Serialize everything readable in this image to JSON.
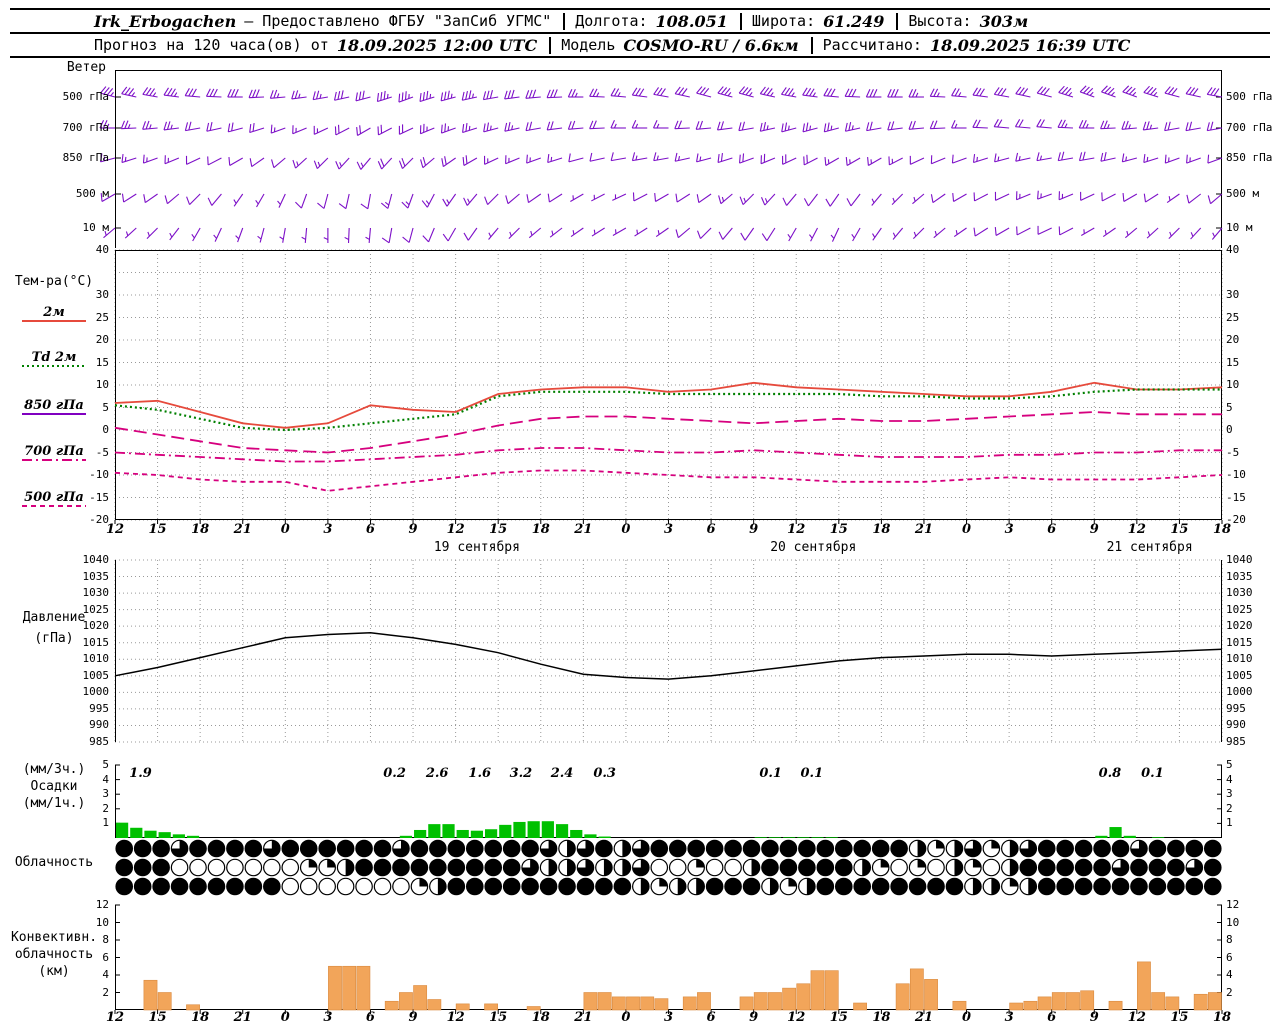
{
  "header": {
    "line1": {
      "station": "Irk_Erbogachen",
      "provider": "– Предоставлено ФГБУ \"ЗапСиб УГМС\"",
      "lon_label": "Долгота:",
      "lon": "108.051",
      "lat_label": "Широта:",
      "lat": "61.249",
      "alt_label": "Высота:",
      "alt": "303м"
    },
    "line2": {
      "forecast_label": "Прогноз на 120 часа(ов) от",
      "forecast_time": "18.09.2025 12:00 UTC",
      "model_label": "Модель",
      "model": "COSMO-RU / 6.6км",
      "calc_label": "Рассчитано:",
      "calc_time": "18.09.2025 16:39 UTC"
    }
  },
  "labels": {
    "wind": "Ветер",
    "temp_title": "Тем-ра(°C)",
    "pressure_line1": "Давление",
    "pressure_line2": "(гПа)",
    "precip_line1": "(мм/3ч.)",
    "precip_line2": "Осадки",
    "precip_line3": "(мм/1ч.)",
    "cloud": "Облачность",
    "conv_line1": "Конвективн.",
    "conv_line2": "облачность",
    "conv_line3": "(км)"
  },
  "axis": {
    "hour_labels": [
      "12",
      "15",
      "18",
      "21",
      "0",
      "3",
      "6",
      "9",
      "12",
      "15",
      "18",
      "21",
      "0",
      "3",
      "6",
      "9",
      "12",
      "15",
      "18",
      "21",
      "0",
      "3",
      "6",
      "9",
      "12",
      "15",
      "18"
    ],
    "step_hours": 3,
    "total_hours": 78,
    "date_labels": [
      {
        "text": "19 сентября",
        "hour": 25.5
      },
      {
        "text": "20 сентября",
        "hour": 49.2
      },
      {
        "text": "21 сентября",
        "hour": 72.9
      }
    ]
  },
  "chart_data": [
    {
      "id": "wind",
      "type": "wind-barbs",
      "title": "Ветер",
      "color": "#7d10c8",
      "x_step_hours": 3,
      "levels": [
        {
          "name": "500 гПа",
          "dirs": [
            285,
            280,
            275,
            270,
            265,
            260,
            255,
            250,
            255,
            260,
            265,
            270,
            275,
            280,
            285,
            285,
            280,
            275,
            270,
            270,
            275,
            280,
            285,
            290,
            290,
            285,
            280
          ],
          "speeds": [
            35,
            35,
            30,
            30,
            25,
            25,
            30,
            35,
            35,
            30,
            30,
            25,
            25,
            30,
            30,
            35,
            35,
            30,
            30,
            25,
            25,
            30,
            30,
            35,
            35,
            30,
            30
          ]
        },
        {
          "name": "700 гПа",
          "dirs": [
            270,
            265,
            260,
            255,
            250,
            245,
            240,
            245,
            250,
            255,
            260,
            265,
            270,
            270,
            265,
            260,
            255,
            255,
            260,
            265,
            270,
            275,
            275,
            270,
            265,
            260,
            260
          ],
          "speeds": [
            25,
            25,
            20,
            20,
            15,
            15,
            20,
            20,
            25,
            25,
            20,
            20,
            15,
            15,
            20,
            20,
            25,
            25,
            20,
            20,
            15,
            20,
            20,
            25,
            25,
            20,
            20
          ]
        },
        {
          "name": "850 гПа",
          "dirs": [
            255,
            250,
            245,
            240,
            230,
            225,
            220,
            225,
            235,
            245,
            250,
            255,
            260,
            260,
            255,
            250,
            245,
            240,
            240,
            245,
            250,
            255,
            260,
            260,
            255,
            250,
            250
          ],
          "speeds": [
            15,
            15,
            10,
            10,
            10,
            15,
            15,
            20,
            20,
            15,
            15,
            10,
            10,
            15,
            15,
            20,
            20,
            15,
            15,
            10,
            10,
            15,
            15,
            20,
            15,
            15,
            10
          ]
        },
        {
          "name": "500 м",
          "dirs": [
            240,
            235,
            225,
            215,
            205,
            195,
            190,
            200,
            215,
            225,
            235,
            240,
            245,
            240,
            235,
            225,
            220,
            215,
            220,
            230,
            240,
            245,
            250,
            245,
            240,
            235,
            230
          ],
          "speeds": [
            10,
            10,
            10,
            5,
            5,
            10,
            10,
            15,
            15,
            10,
            10,
            5,
            5,
            10,
            10,
            15,
            10,
            10,
            5,
            5,
            10,
            10,
            15,
            10,
            10,
            5,
            10
          ]
        },
        {
          "name": "10 м",
          "dirs": [
            230,
            225,
            210,
            200,
            190,
            180,
            185,
            195,
            210,
            220,
            230,
            235,
            240,
            235,
            225,
            215,
            210,
            205,
            215,
            225,
            235,
            240,
            245,
            240,
            230,
            225,
            220
          ],
          "speeds": [
            5,
            5,
            5,
            3,
            3,
            5,
            5,
            10,
            10,
            5,
            5,
            3,
            5,
            5,
            10,
            10,
            5,
            5,
            3,
            5,
            5,
            10,
            10,
            5,
            5,
            3,
            5
          ]
        }
      ]
    },
    {
      "id": "temp",
      "type": "line",
      "title": "Тем-ра(°C)",
      "ylim": [
        -20,
        40
      ],
      "grid_step": 5,
      "yticks_labeled": [
        40,
        30,
        25,
        20,
        15,
        10,
        5,
        0,
        -5,
        -10,
        -15,
        -20
      ],
      "x_hours": [
        0,
        3,
        6,
        9,
        12,
        15,
        18,
        21,
        24,
        27,
        30,
        33,
        36,
        39,
        42,
        45,
        48,
        51,
        54,
        57,
        60,
        63,
        66,
        69,
        72,
        75,
        78
      ],
      "series": [
        {
          "name": "2м",
          "color": "#e64a3c",
          "dash": "solid",
          "values": [
            6,
            6.5,
            4,
            1.5,
            0.5,
            1.5,
            5.5,
            4.5,
            4,
            8,
            9,
            9.5,
            9.5,
            8.5,
            9,
            10.5,
            9.5,
            9,
            8.5,
            8,
            7.5,
            7.5,
            8.5,
            10.5,
            9,
            9,
            9.5
          ]
        },
        {
          "name": "Td 2м",
          "color": "#008000",
          "dash": "dot",
          "values": [
            5.5,
            4.5,
            2.5,
            0.5,
            0,
            0.5,
            1.5,
            2.5,
            3.5,
            7.5,
            8.5,
            8.5,
            8.5,
            8,
            8,
            8,
            8,
            8,
            7.5,
            7.5,
            7,
            7,
            7.5,
            8.5,
            9,
            9,
            9
          ]
        },
        {
          "name": "850 гПа",
          "color": "#d6007e",
          "dash": "longdash",
          "legend_color": "#8000c0",
          "legend_dash": "solid",
          "values": [
            0.5,
            -1,
            -2.5,
            -4,
            -4.5,
            -5,
            -4,
            -2.5,
            -1,
            1,
            2.5,
            3,
            3,
            2.5,
            2,
            1.5,
            2,
            2.5,
            2,
            2,
            2.5,
            3,
            3.5,
            4,
            3.5,
            3.5,
            3.5
          ]
        },
        {
          "name": "700 гПа",
          "color": "#d6007e",
          "dash": "dashdot",
          "values": [
            -5,
            -5.5,
            -6,
            -6.5,
            -7,
            -7,
            -6.5,
            -6,
            -5.5,
            -4.5,
            -4,
            -4,
            -4.5,
            -5,
            -5,
            -4.5,
            -5,
            -5.5,
            -6,
            -6,
            -6,
            -5.5,
            -5.5,
            -5,
            -5,
            -4.5,
            -4.5
          ]
        },
        {
          "name": "500 гПа",
          "color": "#d6007e",
          "dash": "dash",
          "values": [
            -9.5,
            -10,
            -11,
            -11.5,
            -11.5,
            -13.5,
            -12.5,
            -11.5,
            -10.5,
            -9.5,
            -9,
            -9,
            -9.5,
            -10,
            -10.5,
            -10.5,
            -11,
            -11.5,
            -11.5,
            -11.5,
            -11,
            -10.5,
            -11,
            -11,
            -11,
            -10.5,
            -10
          ]
        }
      ]
    },
    {
      "id": "pressure",
      "type": "line",
      "title": "Давление (гПа)",
      "ylim": [
        985,
        1040
      ],
      "yticks": [
        1040,
        1035,
        1030,
        1025,
        1020,
        1015,
        1010,
        1005,
        1000,
        995,
        990,
        985
      ],
      "x_hours": [
        0,
        3,
        6,
        9,
        12,
        15,
        18,
        21,
        24,
        27,
        30,
        33,
        36,
        39,
        42,
        45,
        48,
        51,
        54,
        57,
        60,
        63,
        66,
        69,
        72,
        75,
        78
      ],
      "series": [
        {
          "name": "Давление",
          "color": "#000000",
          "dash": "solid",
          "values": [
            1005,
            1007.5,
            1010.5,
            1013.5,
            1016.5,
            1017.5,
            1018,
            1016.5,
            1014.5,
            1012,
            1008.5,
            1005.5,
            1004.5,
            1004,
            1005,
            1006.5,
            1008,
            1009.5,
            1010.5,
            1011,
            1011.5,
            1011.5,
            1011,
            1011.5,
            1012,
            1012.5,
            1013
          ]
        }
      ]
    },
    {
      "id": "precip",
      "type": "bar",
      "title": "Осадки (мм/1ч.)",
      "ylim": [
        0,
        5
      ],
      "yticks": [
        5,
        4,
        3,
        2,
        1
      ],
      "bar_color": "#00c000",
      "bars": [
        [
          0,
          1.05
        ],
        [
          1,
          0.7
        ],
        [
          2,
          0.5
        ],
        [
          3,
          0.4
        ],
        [
          4,
          0.25
        ],
        [
          5,
          0.15
        ],
        [
          20,
          0.15
        ],
        [
          21,
          0.55
        ],
        [
          22,
          0.95
        ],
        [
          23,
          0.95
        ],
        [
          24,
          0.55
        ],
        [
          25,
          0.5
        ],
        [
          26,
          0.6
        ],
        [
          27,
          0.9
        ],
        [
          28,
          1.1
        ],
        [
          29,
          1.15
        ],
        [
          30,
          1.15
        ],
        [
          31,
          0.95
        ],
        [
          32,
          0.55
        ],
        [
          33,
          0.25
        ],
        [
          34,
          0.1
        ],
        [
          45,
          0.05
        ],
        [
          46,
          0.05
        ],
        [
          47,
          0.05
        ],
        [
          48,
          0.05
        ],
        [
          49,
          0.05
        ],
        [
          50,
          0.05
        ],
        [
          69,
          0.15
        ],
        [
          70,
          0.75
        ],
        [
          71,
          0.15
        ],
        [
          73,
          0.05
        ]
      ],
      "labels_3h": [
        [
          1.8,
          "1.9"
        ],
        [
          19.7,
          "0.2"
        ],
        [
          22.7,
          "2.6"
        ],
        [
          25.7,
          "1.6"
        ],
        [
          28.6,
          "3.2"
        ],
        [
          31.5,
          "2.4"
        ],
        [
          34.5,
          "0.3"
        ],
        [
          46.2,
          "0.1"
        ],
        [
          49.1,
          "0.1"
        ],
        [
          70.1,
          "0.8"
        ],
        [
          73.1,
          "0.1"
        ]
      ]
    },
    {
      "id": "cloud",
      "type": "symbols",
      "title": "Облачность",
      "rows": [
        [
          1,
          1,
          1,
          0.75,
          1,
          1,
          1,
          1,
          0.75,
          1,
          1,
          1,
          1,
          1,
          1,
          0.75,
          1,
          1,
          1,
          1,
          1,
          1,
          1,
          0.75,
          0.5,
          0.75,
          1,
          0.5,
          0.75,
          1,
          1,
          1,
          1,
          1,
          1,
          1,
          1,
          1,
          1,
          1,
          1,
          1,
          1,
          0.5,
          0.25,
          0.5,
          0.75,
          0.25,
          0.5,
          0.75,
          1,
          1,
          1,
          1,
          1,
          0.75,
          1,
          1,
          1,
          1
        ],
        [
          1,
          1,
          1,
          0,
          0,
          0,
          0,
          0,
          0,
          0,
          0.25,
          0.25,
          0.5,
          1,
          1,
          1,
          1,
          1,
          1,
          1,
          1,
          1,
          0.75,
          0.5,
          0.5,
          0.75,
          0.5,
          0.5,
          0.75,
          0,
          0,
          0.25,
          0,
          0,
          0.5,
          1,
          1,
          1,
          1,
          1,
          0.5,
          0.25,
          0,
          0.25,
          0,
          0.5,
          0.25,
          0,
          0.5,
          1,
          1,
          1,
          1,
          1,
          0.75,
          1,
          1,
          1,
          0.75,
          1
        ],
        [
          1,
          1,
          1,
          1,
          1,
          1,
          1,
          1,
          1,
          0,
          0,
          0,
          0,
          0,
          0,
          0,
          0.25,
          0.5,
          1,
          1,
          1,
          1,
          1,
          1,
          1,
          1,
          1,
          1,
          0.5,
          0.25,
          0.5,
          0.5,
          1,
          1,
          1,
          0.5,
          0.25,
          0.5,
          1,
          1,
          1,
          1,
          1,
          1,
          1,
          1,
          0.5,
          0.5,
          0.25,
          0.5,
          1,
          1,
          1,
          1,
          1,
          1,
          1,
          1,
          1,
          1
        ]
      ]
    },
    {
      "id": "conv",
      "type": "bar",
      "title": "Конвективная облачность (км)",
      "ylim": [
        0,
        12
      ],
      "yticks": [
        12,
        10,
        8,
        6,
        4,
        2
      ],
      "bar_color": "#f2a55a",
      "bar_edge": "#d98a40",
      "bars": [
        [
          2,
          3.4
        ],
        [
          3,
          2.0
        ],
        [
          5,
          0.6
        ],
        [
          15,
          5.0
        ],
        [
          16,
          5.0
        ],
        [
          17,
          5.0
        ],
        [
          19,
          1.0
        ],
        [
          20,
          2.0
        ],
        [
          21,
          2.8
        ],
        [
          22,
          1.2
        ],
        [
          24,
          0.7
        ],
        [
          26,
          0.7
        ],
        [
          29,
          0.4
        ],
        [
          33,
          2.0
        ],
        [
          34,
          2.0
        ],
        [
          35,
          1.5
        ],
        [
          36,
          1.5
        ],
        [
          37,
          1.5
        ],
        [
          38,
          1.3
        ],
        [
          40,
          1.5
        ],
        [
          41,
          2.0
        ],
        [
          44,
          1.5
        ],
        [
          45,
          2.0
        ],
        [
          46,
          2.0
        ],
        [
          47,
          2.5
        ],
        [
          48,
          3.0
        ],
        [
          49,
          4.5
        ],
        [
          50,
          4.5
        ],
        [
          52,
          0.8
        ],
        [
          55,
          3.0
        ],
        [
          56,
          4.7
        ],
        [
          57,
          3.5
        ],
        [
          59,
          1.0
        ],
        [
          63,
          0.8
        ],
        [
          64,
          1.0
        ],
        [
          65,
          1.5
        ],
        [
          66,
          2.0
        ],
        [
          67,
          2.0
        ],
        [
          68,
          2.2
        ],
        [
          70,
          1.0
        ],
        [
          72,
          5.5
        ],
        [
          73,
          2.0
        ],
        [
          74,
          1.5
        ],
        [
          76,
          1.8
        ],
        [
          77,
          2.0
        ]
      ]
    }
  ]
}
